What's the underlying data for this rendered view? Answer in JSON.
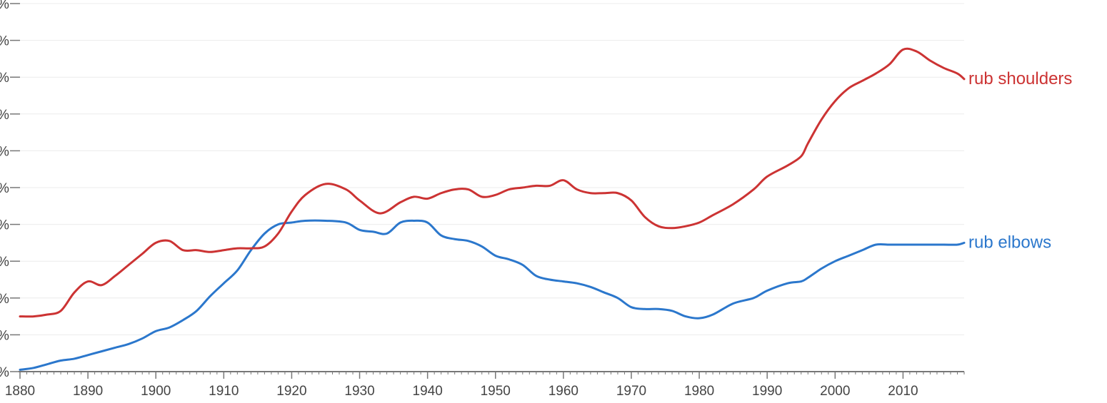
{
  "chart_data": {
    "type": "line",
    "title": "",
    "xlabel": "",
    "ylabel": "",
    "xlim": [
      1880,
      2019
    ],
    "ylim": [
      0,
      10
    ],
    "grid": true,
    "legend": "inline-right",
    "x_ticks": [
      1880,
      1890,
      1900,
      1910,
      1920,
      1930,
      1940,
      1950,
      1960,
      1970,
      1980,
      1990,
      2000,
      2010
    ],
    "y_ticks": [
      {
        "value": 0,
        "label": "%"
      },
      {
        "value": 1,
        "label": "%"
      },
      {
        "value": 2,
        "label": "%"
      },
      {
        "value": 3,
        "label": "%"
      },
      {
        "value": 4,
        "label": "%"
      },
      {
        "value": 5,
        "label": "%"
      },
      {
        "value": 6,
        "label": "%"
      },
      {
        "value": 7,
        "label": "%"
      },
      {
        "value": 8,
        "label": "%"
      },
      {
        "value": 9,
        "label": "%"
      },
      {
        "value": 10,
        "label": "%"
      }
    ],
    "series": [
      {
        "name": "rub shoulders",
        "color": "#cc3333",
        "x": [
          1880,
          1882,
          1884,
          1886,
          1888,
          1890,
          1892,
          1894,
          1896,
          1898,
          1900,
          1902,
          1904,
          1906,
          1908,
          1910,
          1912,
          1914,
          1916,
          1918,
          1920,
          1922,
          1925,
          1928,
          1930,
          1933,
          1936,
          1938,
          1940,
          1942,
          1944,
          1946,
          1948,
          1950,
          1952,
          1954,
          1956,
          1958,
          1960,
          1962,
          1964,
          1966,
          1968,
          1970,
          1972,
          1974,
          1976,
          1978,
          1980,
          1982,
          1985,
          1988,
          1990,
          1993,
          1995,
          1996,
          1998,
          2000,
          2002,
          2004,
          2006,
          2008,
          2010,
          2012,
          2014,
          2016,
          2018,
          2019
        ],
        "y": [
          1.5,
          1.5,
          1.55,
          1.65,
          2.15,
          2.45,
          2.35,
          2.6,
          2.9,
          3.2,
          3.5,
          3.55,
          3.3,
          3.3,
          3.25,
          3.3,
          3.35,
          3.35,
          3.4,
          3.75,
          4.35,
          4.8,
          5.1,
          4.95,
          4.65,
          4.3,
          4.6,
          4.75,
          4.7,
          4.85,
          4.95,
          4.95,
          4.75,
          4.8,
          4.95,
          5.0,
          5.05,
          5.05,
          5.2,
          4.95,
          4.85,
          4.85,
          4.85,
          4.65,
          4.2,
          3.95,
          3.9,
          3.95,
          4.05,
          4.25,
          4.55,
          4.95,
          5.3,
          5.6,
          5.85,
          6.2,
          6.85,
          7.35,
          7.7,
          7.9,
          8.1,
          8.35,
          8.75,
          8.7,
          8.45,
          8.25,
          8.1,
          7.95
        ]
      },
      {
        "name": "rub elbows",
        "color": "#2b77cc",
        "x": [
          1880,
          1882,
          1884,
          1886,
          1888,
          1890,
          1892,
          1894,
          1896,
          1898,
          1900,
          1902,
          1904,
          1906,
          1908,
          1910,
          1912,
          1914,
          1916,
          1918,
          1920,
          1922,
          1925,
          1928,
          1930,
          1932,
          1934,
          1936,
          1938,
          1940,
          1942,
          1944,
          1946,
          1948,
          1950,
          1952,
          1954,
          1956,
          1958,
          1960,
          1962,
          1964,
          1966,
          1968,
          1970,
          1972,
          1974,
          1976,
          1978,
          1980,
          1982,
          1985,
          1988,
          1990,
          1993,
          1995,
          1996,
          1998,
          2000,
          2002,
          2004,
          2006,
          2008,
          2010,
          2012,
          2014,
          2016,
          2018,
          2019
        ],
        "y": [
          0.05,
          0.1,
          0.2,
          0.3,
          0.35,
          0.45,
          0.55,
          0.65,
          0.75,
          0.9,
          1.1,
          1.2,
          1.4,
          1.65,
          2.05,
          2.4,
          2.75,
          3.3,
          3.75,
          4.0,
          4.05,
          4.1,
          4.1,
          4.05,
          3.85,
          3.8,
          3.75,
          4.05,
          4.1,
          4.05,
          3.7,
          3.6,
          3.55,
          3.4,
          3.15,
          3.05,
          2.9,
          2.6,
          2.5,
          2.45,
          2.4,
          2.3,
          2.15,
          2.0,
          1.75,
          1.7,
          1.7,
          1.65,
          1.5,
          1.45,
          1.55,
          1.85,
          2.0,
          2.2,
          2.4,
          2.45,
          2.55,
          2.8,
          3.0,
          3.15,
          3.3,
          3.45,
          3.45,
          3.45,
          3.45,
          3.45,
          3.45,
          3.45,
          3.5
        ]
      }
    ]
  }
}
